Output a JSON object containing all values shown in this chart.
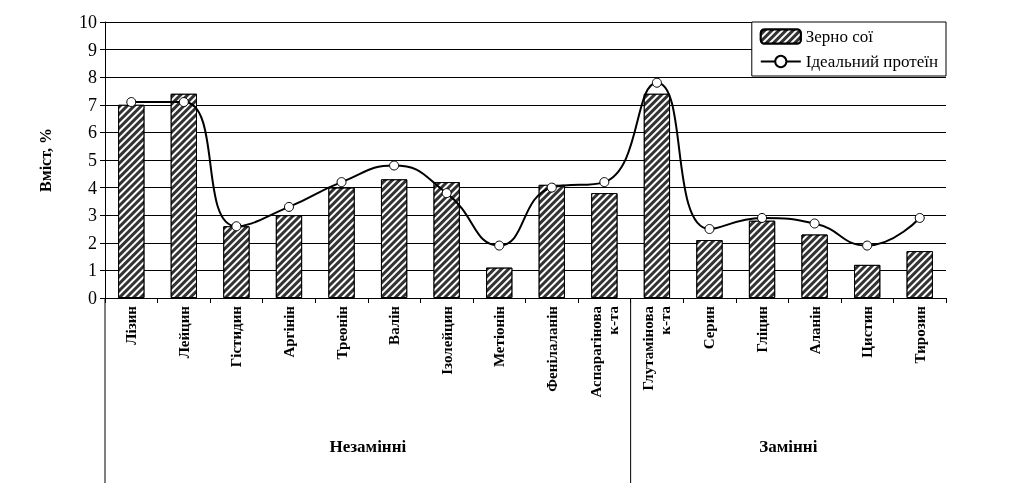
{
  "chart_data": {
    "type": "bar",
    "ylabel": "Вміст, %",
    "categories": [
      "Лізин",
      "Лейцин",
      "Гістидин",
      "Аргінін",
      "Треонін",
      "Валін",
      "Ізолейцин",
      "Метіонін",
      "Фенілаланін",
      "Аспарагінова к-та",
      "Глутамінова к-та",
      "Серин",
      "Гліцин",
      "Аланін",
      "Цистин",
      "Тирозин"
    ],
    "series": [
      {
        "name": "Зерно сої",
        "color": "#333333",
        "values": [
          7.0,
          7.4,
          2.6,
          3.0,
          4.0,
          4.3,
          4.2,
          1.1,
          4.1,
          3.8,
          7.4,
          2.1,
          2.8,
          2.3,
          1.2,
          1.7
        ]
      },
      {
        "name": "Ідеальний протеїн",
        "type": "line",
        "color": "#000000",
        "values": [
          7.1,
          7.1,
          2.6,
          3.3,
          4.2,
          4.8,
          3.8,
          1.9,
          4.0,
          4.2,
          7.8,
          2.5,
          2.9,
          2.7,
          1.9,
          2.9
        ]
      }
    ],
    "annotations": [
      "Незамінні",
      "Замінні"
    ],
    "ylim": [
      0,
      10
    ],
    "yticks": [
      0,
      1,
      2,
      3,
      4,
      5,
      6,
      7,
      8,
      9,
      10
    ],
    "grid": "y",
    "legend": "top right",
    "marker": "circle"
  }
}
